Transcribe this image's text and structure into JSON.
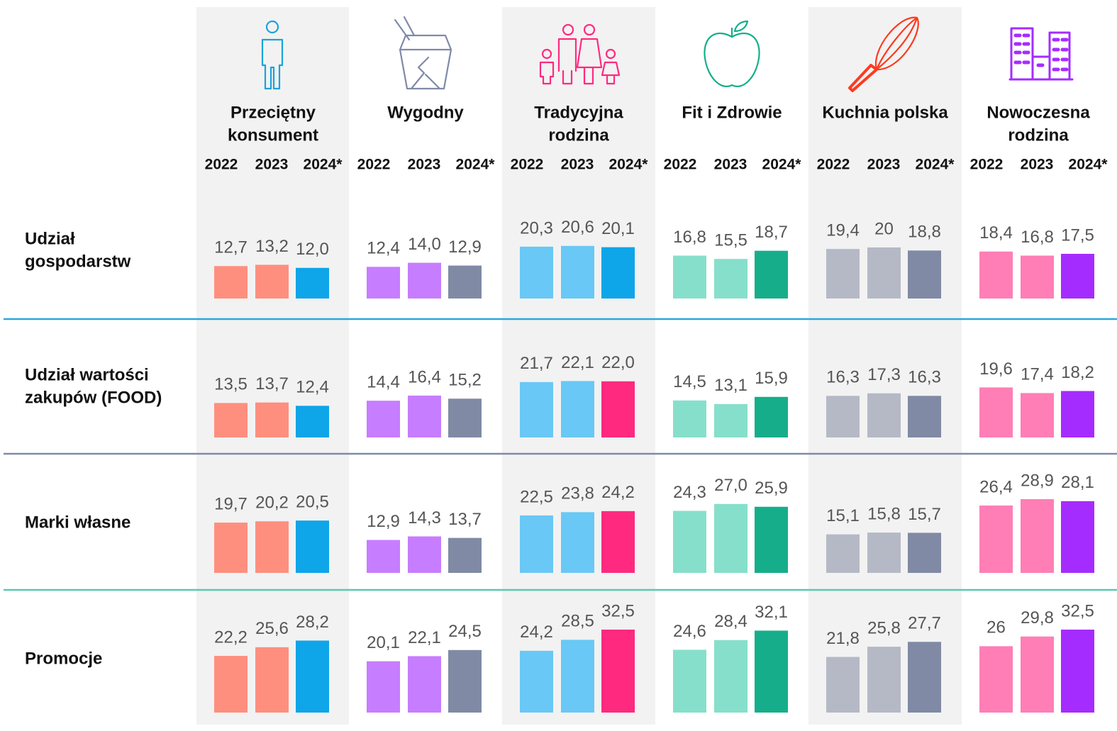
{
  "chart_data": {
    "type": "bar",
    "ylim": [
      0,
      40
    ],
    "categories": [
      "2022",
      "2023",
      "2024*"
    ],
    "columns": [
      {
        "name": [
          "Przeciętny",
          "konsument"
        ]
      },
      {
        "name": [
          "Wygodny"
        ]
      },
      {
        "name": [
          "Tradycyjna",
          "rodzina"
        ]
      },
      {
        "name": [
          "Fit i Zdrowie"
        ]
      },
      {
        "name": [
          "Kuchnia polska"
        ]
      },
      {
        "name": [
          "Nowoczesna",
          "rodzina"
        ]
      }
    ],
    "rows": [
      {
        "label": [
          "Udział",
          "gospodarstw"
        ],
        "cells": [
          {
            "values": [
              12.7,
              13.2,
              12.0
            ],
            "value_labels": [
              "12,7",
              "13,2",
              "12,0"
            ],
            "colors": [
              "#fe8f7e",
              "#fe8f7e",
              "#0ea5e9"
            ]
          },
          {
            "values": [
              12.4,
              14.0,
              12.9
            ],
            "value_labels": [
              "12,4",
              "14,0",
              "12,9"
            ],
            "colors": [
              "#c77dff",
              "#c77dff",
              "#808aa5"
            ]
          },
          {
            "values": [
              20.3,
              20.6,
              20.1
            ],
            "value_labels": [
              "20,3",
              "20,6",
              "20,1"
            ],
            "colors": [
              "#69c8f5",
              "#69c8f5",
              "#0ea5e9"
            ]
          },
          {
            "values": [
              16.8,
              15.5,
              18.7
            ],
            "value_labels": [
              "16,8",
              "15,5",
              "18,7"
            ],
            "colors": [
              "#86dfcb",
              "#86dfcb",
              "#16ae8a"
            ]
          },
          {
            "values": [
              19.4,
              20,
              18.8
            ],
            "value_labels": [
              "19,4",
              "20",
              "18,8"
            ],
            "colors": [
              "#b5b9c6",
              "#b5b9c6",
              "#808aa5"
            ]
          },
          {
            "values": [
              18.4,
              16.8,
              17.5
            ],
            "value_labels": [
              "18,4",
              "16,8",
              "17,5"
            ],
            "colors": [
              "#ff7eb6",
              "#ff7eb6",
              "#a52cff"
            ]
          }
        ]
      },
      {
        "label": [
          "Udział wartości",
          "zakupów (FOOD)"
        ],
        "cells": [
          {
            "values": [
              13.5,
              13.7,
              12.4
            ],
            "value_labels": [
              "13,5",
              "13,7",
              "12,4"
            ],
            "colors": [
              "#fe8f7e",
              "#fe8f7e",
              "#0ea5e9"
            ]
          },
          {
            "values": [
              14.4,
              16.4,
              15.2
            ],
            "value_labels": [
              "14,4",
              "16,4",
              "15,2"
            ],
            "colors": [
              "#c77dff",
              "#c77dff",
              "#808aa5"
            ]
          },
          {
            "values": [
              21.7,
              22.1,
              22.0
            ],
            "value_labels": [
              "21,7",
              "22,1",
              "22,0"
            ],
            "colors": [
              "#69c8f5",
              "#69c8f5",
              "#ff2a7f"
            ]
          },
          {
            "values": [
              14.5,
              13.1,
              15.9
            ],
            "value_labels": [
              "14,5",
              "13,1",
              "15,9"
            ],
            "colors": [
              "#86dfcb",
              "#86dfcb",
              "#16ae8a"
            ]
          },
          {
            "values": [
              16.3,
              17.3,
              16.3
            ],
            "value_labels": [
              "16,3",
              "17,3",
              "16,3"
            ],
            "colors": [
              "#b5b9c6",
              "#b5b9c6",
              "#808aa5"
            ]
          },
          {
            "values": [
              19.6,
              17.4,
              18.2
            ],
            "value_labels": [
              "19,6",
              "17,4",
              "18,2"
            ],
            "colors": [
              "#ff7eb6",
              "#ff7eb6",
              "#a52cff"
            ]
          }
        ]
      },
      {
        "label": [
          "Marki własne"
        ],
        "cells": [
          {
            "values": [
              19.7,
              20.2,
              20.5
            ],
            "value_labels": [
              "19,7",
              "20,2",
              "20,5"
            ],
            "colors": [
              "#fe8f7e",
              "#fe8f7e",
              "#0ea5e9"
            ]
          },
          {
            "values": [
              12.9,
              14.3,
              13.7
            ],
            "value_labels": [
              "12,9",
              "14,3",
              "13,7"
            ],
            "colors": [
              "#c77dff",
              "#c77dff",
              "#808aa5"
            ]
          },
          {
            "values": [
              22.5,
              23.8,
              24.2
            ],
            "value_labels": [
              "22,5",
              "23,8",
              "24,2"
            ],
            "colors": [
              "#69c8f5",
              "#69c8f5",
              "#ff2a7f"
            ]
          },
          {
            "values": [
              24.3,
              27.0,
              25.9
            ],
            "value_labels": [
              "24,3",
              "27,0",
              "25,9"
            ],
            "colors": [
              "#86dfcb",
              "#86dfcb",
              "#16ae8a"
            ]
          },
          {
            "values": [
              15.1,
              15.8,
              15.7
            ],
            "value_labels": [
              "15,1",
              "15,8",
              "15,7"
            ],
            "colors": [
              "#b5b9c6",
              "#b5b9c6",
              "#808aa5"
            ]
          },
          {
            "values": [
              26.4,
              28.9,
              28.1
            ],
            "value_labels": [
              "26,4",
              "28,9",
              "28,1"
            ],
            "colors": [
              "#ff7eb6",
              "#ff7eb6",
              "#a52cff"
            ]
          }
        ]
      },
      {
        "label": [
          "Promocje"
        ],
        "cells": [
          {
            "values": [
              22.2,
              25.6,
              28.2
            ],
            "value_labels": [
              "22,2",
              "25,6",
              "28,2"
            ],
            "colors": [
              "#fe8f7e",
              "#fe8f7e",
              "#0ea5e9"
            ]
          },
          {
            "values": [
              20.1,
              22.1,
              24.5
            ],
            "value_labels": [
              "20,1",
              "22,1",
              "24,5"
            ],
            "colors": [
              "#c77dff",
              "#c77dff",
              "#808aa5"
            ]
          },
          {
            "values": [
              24.2,
              28.5,
              32.5
            ],
            "value_labels": [
              "24,2",
              "28,5",
              "32,5"
            ],
            "colors": [
              "#69c8f5",
              "#69c8f5",
              "#ff2a7f"
            ]
          },
          {
            "values": [
              24.6,
              28.4,
              32.1
            ],
            "value_labels": [
              "24,6",
              "28,4",
              "32,1"
            ],
            "colors": [
              "#86dfcb",
              "#86dfcb",
              "#16ae8a"
            ]
          },
          {
            "values": [
              21.8,
              25.8,
              27.7
            ],
            "value_labels": [
              "21,8",
              "25,8",
              "27,7"
            ],
            "colors": [
              "#b5b9c6",
              "#b5b9c6",
              "#808aa5"
            ]
          },
          {
            "values": [
              26,
              29.8,
              32.5
            ],
            "value_labels": [
              "26",
              "29,8",
              "32,5"
            ],
            "colors": [
              "#ff7eb6",
              "#ff7eb6",
              "#a52cff"
            ]
          }
        ]
      }
    ]
  }
}
